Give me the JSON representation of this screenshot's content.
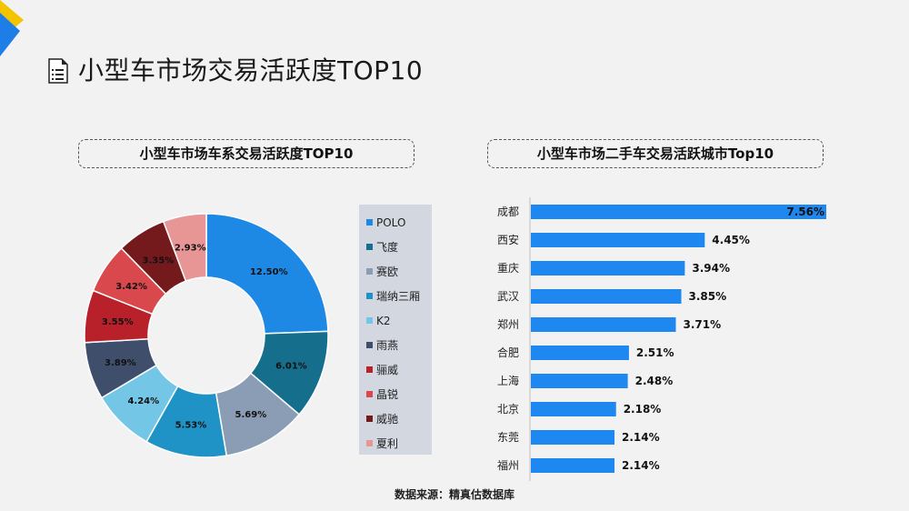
{
  "page": {
    "title": "小型车市场交易活跃度TOP10",
    "source": "数据来源：精真估数据库"
  },
  "colors": {
    "accent_yellow": "#f5c400",
    "accent_blue": "#1e7ee8",
    "bar_blue": "#1e88f0"
  },
  "chart_data": [
    {
      "type": "pie",
      "title": "小型车市场车系交易活跃度TOP10",
      "donut": true,
      "legend_position": "right",
      "labels": [
        "POLO",
        "飞度",
        "赛欧",
        "瑞纳三厢",
        "K2",
        "雨燕",
        "骊威",
        "晶锐",
        "威驰",
        "夏利"
      ],
      "values": [
        12.5,
        6.01,
        5.69,
        5.53,
        4.24,
        3.89,
        3.55,
        3.42,
        3.35,
        2.93
      ],
      "value_labels": [
        "12.50%",
        "6.01%",
        "5.69%",
        "5.53%",
        "4.24%",
        "3.89%",
        "3.55%",
        "3.42%",
        "3.35%",
        "2.93%"
      ],
      "colors": [
        "#1e88e5",
        "#156f8c",
        "#8b9db5",
        "#1f93c6",
        "#74c6e6",
        "#3f4f6b",
        "#b8202a",
        "#d9484d",
        "#741a1d",
        "#e89596"
      ]
    },
    {
      "type": "bar",
      "orientation": "horizontal",
      "title": "小型车市场二手车交易活跃城市Top10",
      "categories": [
        "成都",
        "西安",
        "重庆",
        "武汉",
        "郑州",
        "合肥",
        "上海",
        "北京",
        "东莞",
        "福州"
      ],
      "values": [
        7.56,
        4.45,
        3.94,
        3.85,
        3.71,
        2.51,
        2.48,
        2.18,
        2.14,
        2.14
      ],
      "value_labels": [
        "7.56%",
        "4.45%",
        "3.94%",
        "3.85%",
        "3.71%",
        "2.51%",
        "2.48%",
        "2.18%",
        "2.14%",
        "2.14%"
      ],
      "xlim": [
        0,
        7.56
      ],
      "grid": false
    }
  ]
}
